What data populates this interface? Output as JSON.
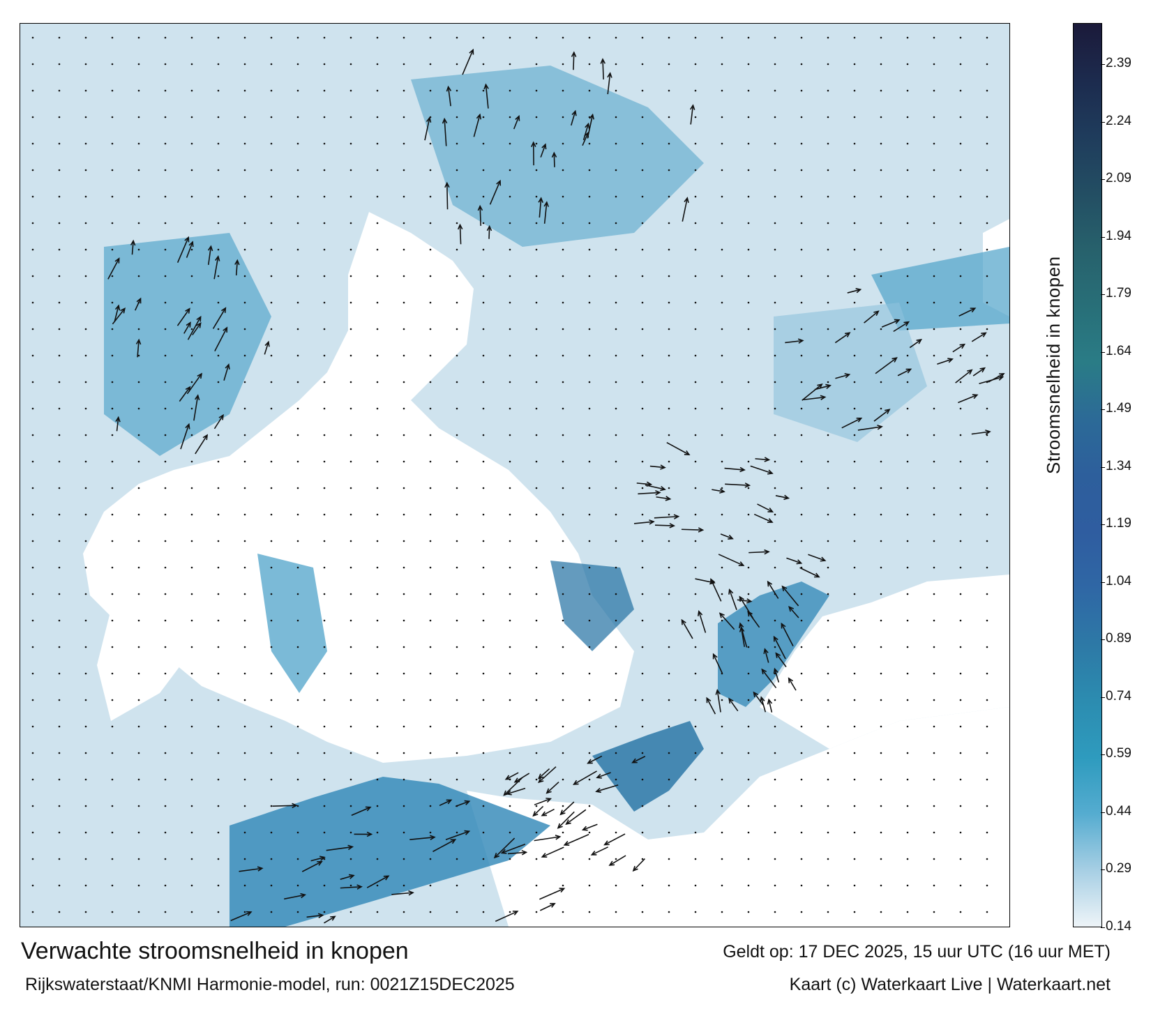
{
  "map": {
    "colormap_units": "knopen",
    "land_color": "#ffffff",
    "sea_colors": [
      "#f4f8fb",
      "#cfe3ee",
      "#8ec2dc",
      "#4fa3c9",
      "#2e86b6",
      "#2270a3"
    ],
    "arrow_color": "#111111",
    "grid_marker": "dot",
    "region_labels_visible": false
  },
  "colorbar": {
    "label": "Stroomsnelheid in knopen",
    "ticks": [
      "2.39",
      "2.24",
      "2.09",
      "1.94",
      "1.79",
      "1.64",
      "1.49",
      "1.34",
      "1.19",
      "1.04",
      "0.89",
      "0.74",
      "0.59",
      "0.44",
      "0.29",
      "0.14"
    ],
    "colors": [
      "#1b1a3a",
      "#1c2b4e",
      "#1f3c5c",
      "#234e63",
      "#27616c",
      "#286f78",
      "#2a7c86",
      "#2c6a97",
      "#2d5f9c",
      "#2f5da0",
      "#2f67a5",
      "#2d79a6",
      "#2c8cb0",
      "#2e9bbe",
      "#55acd0",
      "#a7cfe4",
      "#eef4f8"
    ]
  },
  "footer": {
    "title": "Verwachte stroomsnelheid in knopen",
    "valid": "Geldt op: 17 DEC 2025, 15 uur UTC (16 uur MET)",
    "run": "Rijkswaterstaat/KNMI Harmonie-model, run: 0021Z15DEC2025",
    "credit": "Kaart (c) Waterkaart Live | Waterkaart.net"
  }
}
